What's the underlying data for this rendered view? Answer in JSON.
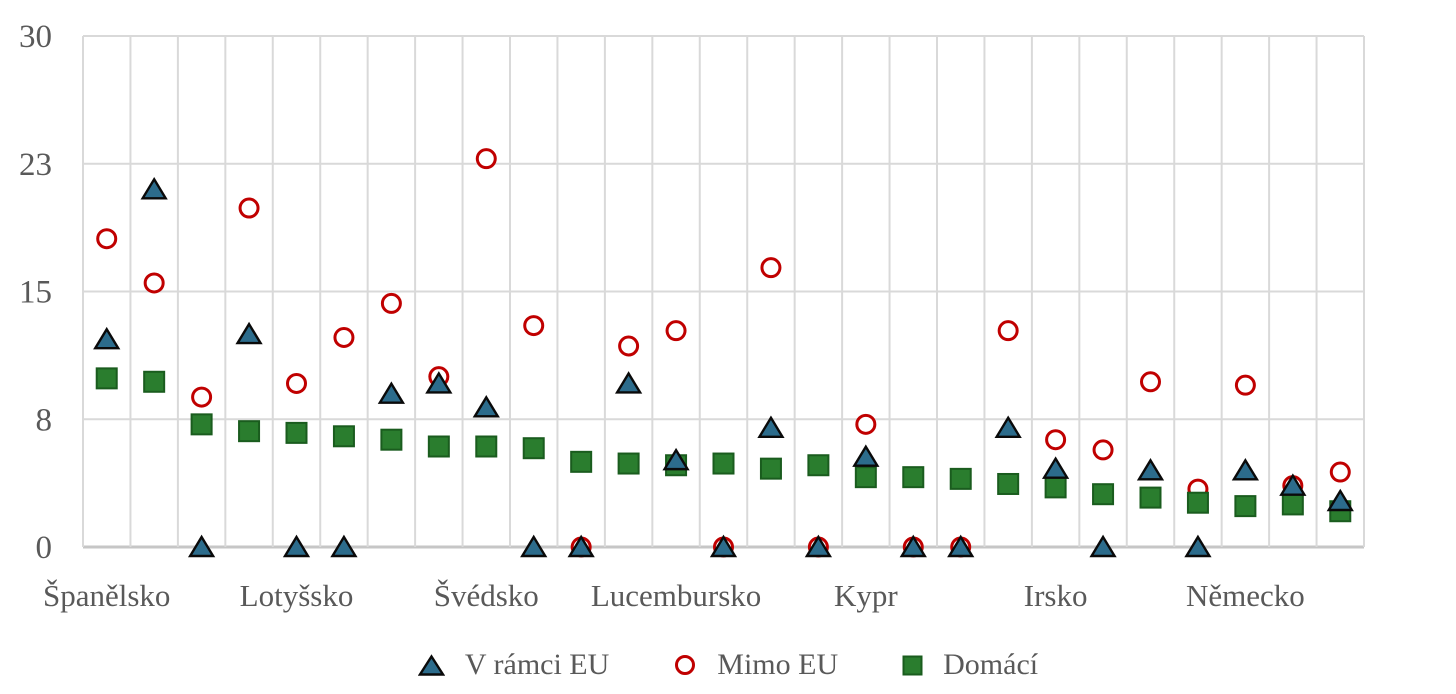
{
  "chart_data": {
    "type": "scatter",
    "title": "",
    "xlabel": "",
    "ylabel": "",
    "ylim": [
      0,
      30
    ],
    "grid": true,
    "n_categories": 27,
    "y_ticks": [
      {
        "value": 0,
        "label": "0"
      },
      {
        "value": 7.5,
        "label": "8"
      },
      {
        "value": 15,
        "label": "15"
      },
      {
        "value": 22.5,
        "label": "23"
      },
      {
        "value": 30,
        "label": "30"
      }
    ],
    "x_tick_labels": [
      {
        "index": 0,
        "label": "Španělsko"
      },
      {
        "index": 4,
        "label": "Lotyšsko"
      },
      {
        "index": 8,
        "label": "Švédsko"
      },
      {
        "index": 12,
        "label": "Lucembursko"
      },
      {
        "index": 16,
        "label": "Kypr"
      },
      {
        "index": 20,
        "label": "Irsko"
      },
      {
        "index": 24,
        "label": "Německo"
      }
    ],
    "series": [
      {
        "name": "V rámci EU",
        "marker": "triangle",
        "color": "#2c6c8c",
        "outline": "#0a0a0a",
        "z": 3,
        "values": [
          12.2,
          21.0,
          0,
          12.5,
          0,
          0,
          9.0,
          9.6,
          8.2,
          0,
          0,
          9.6,
          5.1,
          0,
          7.0,
          0,
          5.3,
          0,
          0,
          7.0,
          4.6,
          0,
          4.5,
          0,
          4.5,
          3.6,
          2.7
        ]
      },
      {
        "name": "Mimo EU",
        "marker": "circle",
        "color": "#c00000",
        "outline": "#c00000",
        "z": 1,
        "values": [
          18.1,
          15.5,
          8.8,
          19.9,
          9.6,
          12.3,
          14.3,
          10.0,
          22.8,
          13.0,
          0,
          11.8,
          12.7,
          0,
          16.4,
          0,
          7.2,
          0,
          0,
          12.7,
          6.3,
          5.7,
          9.7,
          3.4,
          9.5,
          3.6,
          4.4
        ]
      },
      {
        "name": "Domácí",
        "marker": "square",
        "color": "#2a7d2e",
        "outline": "#1a5c1e",
        "z": 2,
        "values": [
          9.9,
          9.7,
          7.2,
          6.8,
          6.7,
          6.5,
          6.3,
          5.9,
          5.9,
          5.8,
          5.0,
          4.9,
          4.8,
          4.9,
          4.6,
          4.8,
          4.1,
          4.1,
          4.0,
          3.7,
          3.5,
          3.1,
          2.9,
          2.6,
          2.4,
          2.5,
          2.1
        ]
      }
    ],
    "legend_position": "bottom",
    "colors": {
      "gridline": "#d9d9d9",
      "baseline": "#c6c6c6",
      "axis_text": "#595959",
      "circle_fill": "#ffffff"
    }
  }
}
